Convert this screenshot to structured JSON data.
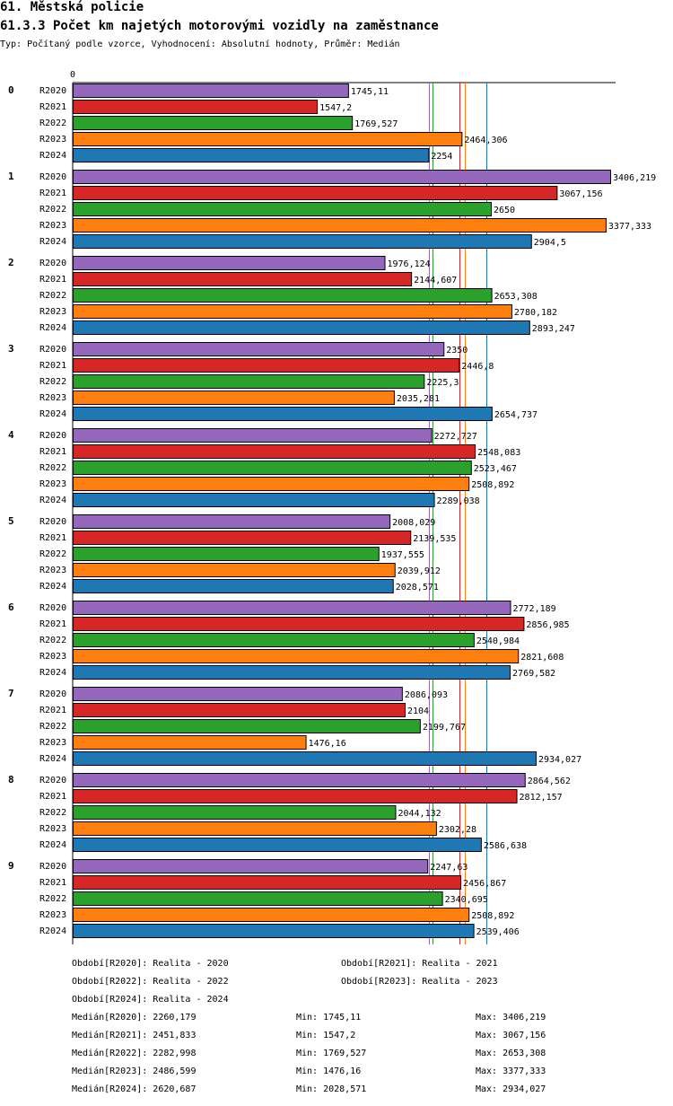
{
  "header": {
    "title": "61. Městská policie",
    "subtitle": "61.3.3 Počet km najetých motorovými vozidly na zaměstnance",
    "info": "Typ: Počítaný podle vzorce, Vyhodnocení: Absolutní hodnoty, Průměr: Medián"
  },
  "chart_data": {
    "type": "bar",
    "orientation": "horizontal",
    "title": "61.3.3 Počet km najetých motorovými vozidly na zaměstnance",
    "axis_zero_label": "0",
    "xlim": [
      0,
      3406.219
    ],
    "categories": [
      "0",
      "1",
      "2",
      "3",
      "4",
      "5",
      "6",
      "7",
      "8",
      "9"
    ],
    "series": [
      {
        "name": "R2020",
        "color": "#9467bd",
        "values": [
          1745.11,
          3406.219,
          1976.124,
          2350,
          2272.727,
          2008.029,
          2772.189,
          2086.093,
          2864.562,
          2247.63
        ],
        "labels": [
          "1745,11",
          "3406,219",
          "1976,124",
          "2350",
          "2272,727",
          "2008,029",
          "2772,189",
          "2086,093",
          "2864,562",
          "2247,63"
        ]
      },
      {
        "name": "R2021",
        "color": "#d62728",
        "values": [
          1547.2,
          3067.156,
          2144.607,
          2446.8,
          2548.083,
          2139.535,
          2856.985,
          2104,
          2812.157,
          2456.867
        ],
        "labels": [
          "1547,2",
          "3067,156",
          "2144,607",
          "2446,8",
          "2548,083",
          "2139,535",
          "2856,985",
          "2104",
          "2812,157",
          "2456,867"
        ]
      },
      {
        "name": "R2022",
        "color": "#2ca02c",
        "values": [
          1769.527,
          2650,
          2653.308,
          2225.3,
          2523.467,
          1937.555,
          2540.984,
          2199.767,
          2044.132,
          2340.695
        ],
        "labels": [
          "1769,527",
          "2650",
          "2653,308",
          "2225,3",
          "2523,467",
          "1937,555",
          "2540,984",
          "2199,767",
          "2044,132",
          "2340,695"
        ]
      },
      {
        "name": "R2023",
        "color": "#ff7f0e",
        "values": [
          2464.306,
          3377.333,
          2780.182,
          2035.281,
          2508.892,
          2039.912,
          2821.608,
          1476.16,
          2302.28,
          2508.892
        ],
        "labels": [
          "2464,306",
          "3377,333",
          "2780,182",
          "2035,281",
          "2508,892",
          "2039,912",
          "2821,608",
          "1476,16",
          "2302,28",
          "2508,892"
        ]
      },
      {
        "name": "R2024",
        "color": "#1f77b4",
        "values": [
          2254,
          2904.5,
          2893.247,
          2654.737,
          2289.038,
          2028.571,
          2769.582,
          2934.027,
          2586.638,
          2539.406
        ],
        "labels": [
          "2254",
          "2904,5",
          "2893,247",
          "2654,737",
          "2289,038",
          "2028,571",
          "2769,582",
          "2934,027",
          "2586,638",
          "2539,406"
        ]
      }
    ],
    "median_lines": [
      {
        "series": "R2020",
        "value": 2260.179,
        "color": "#9467bd"
      },
      {
        "series": "R2021",
        "value": 2451.833,
        "color": "#d62728"
      },
      {
        "series": "R2022",
        "value": 2282.998,
        "color": "#2ca02c"
      },
      {
        "series": "R2023",
        "value": 2486.599,
        "color": "#ff7f0e"
      },
      {
        "series": "R2024",
        "value": 2620.687,
        "color": "#1f77b4"
      }
    ]
  },
  "legend": {
    "periods": [
      "Období[R2020]: Realita - 2020",
      "Období[R2021]: Realita - 2021",
      "Období[R2022]: Realita - 2022",
      "Období[R2023]: Realita - 2023",
      "Období[R2024]: Realita - 2024"
    ],
    "stats": [
      {
        "median": "Medián[R2020]: 2260,179",
        "min": "Min: 1745,11",
        "max": "Max: 3406,219"
      },
      {
        "median": "Medián[R2021]: 2451,833",
        "min": "Min: 1547,2",
        "max": "Max: 3067,156"
      },
      {
        "median": "Medián[R2022]: 2282,998",
        "min": "Min: 1769,527",
        "max": "Max: 2653,308"
      },
      {
        "median": "Medián[R2023]: 2486,599",
        "min": "Min: 1476,16",
        "max": "Max: 3377,333"
      },
      {
        "median": "Medián[R2024]: 2620,687",
        "min": "Min: 2028,571",
        "max": "Max: 2934,027"
      }
    ]
  }
}
